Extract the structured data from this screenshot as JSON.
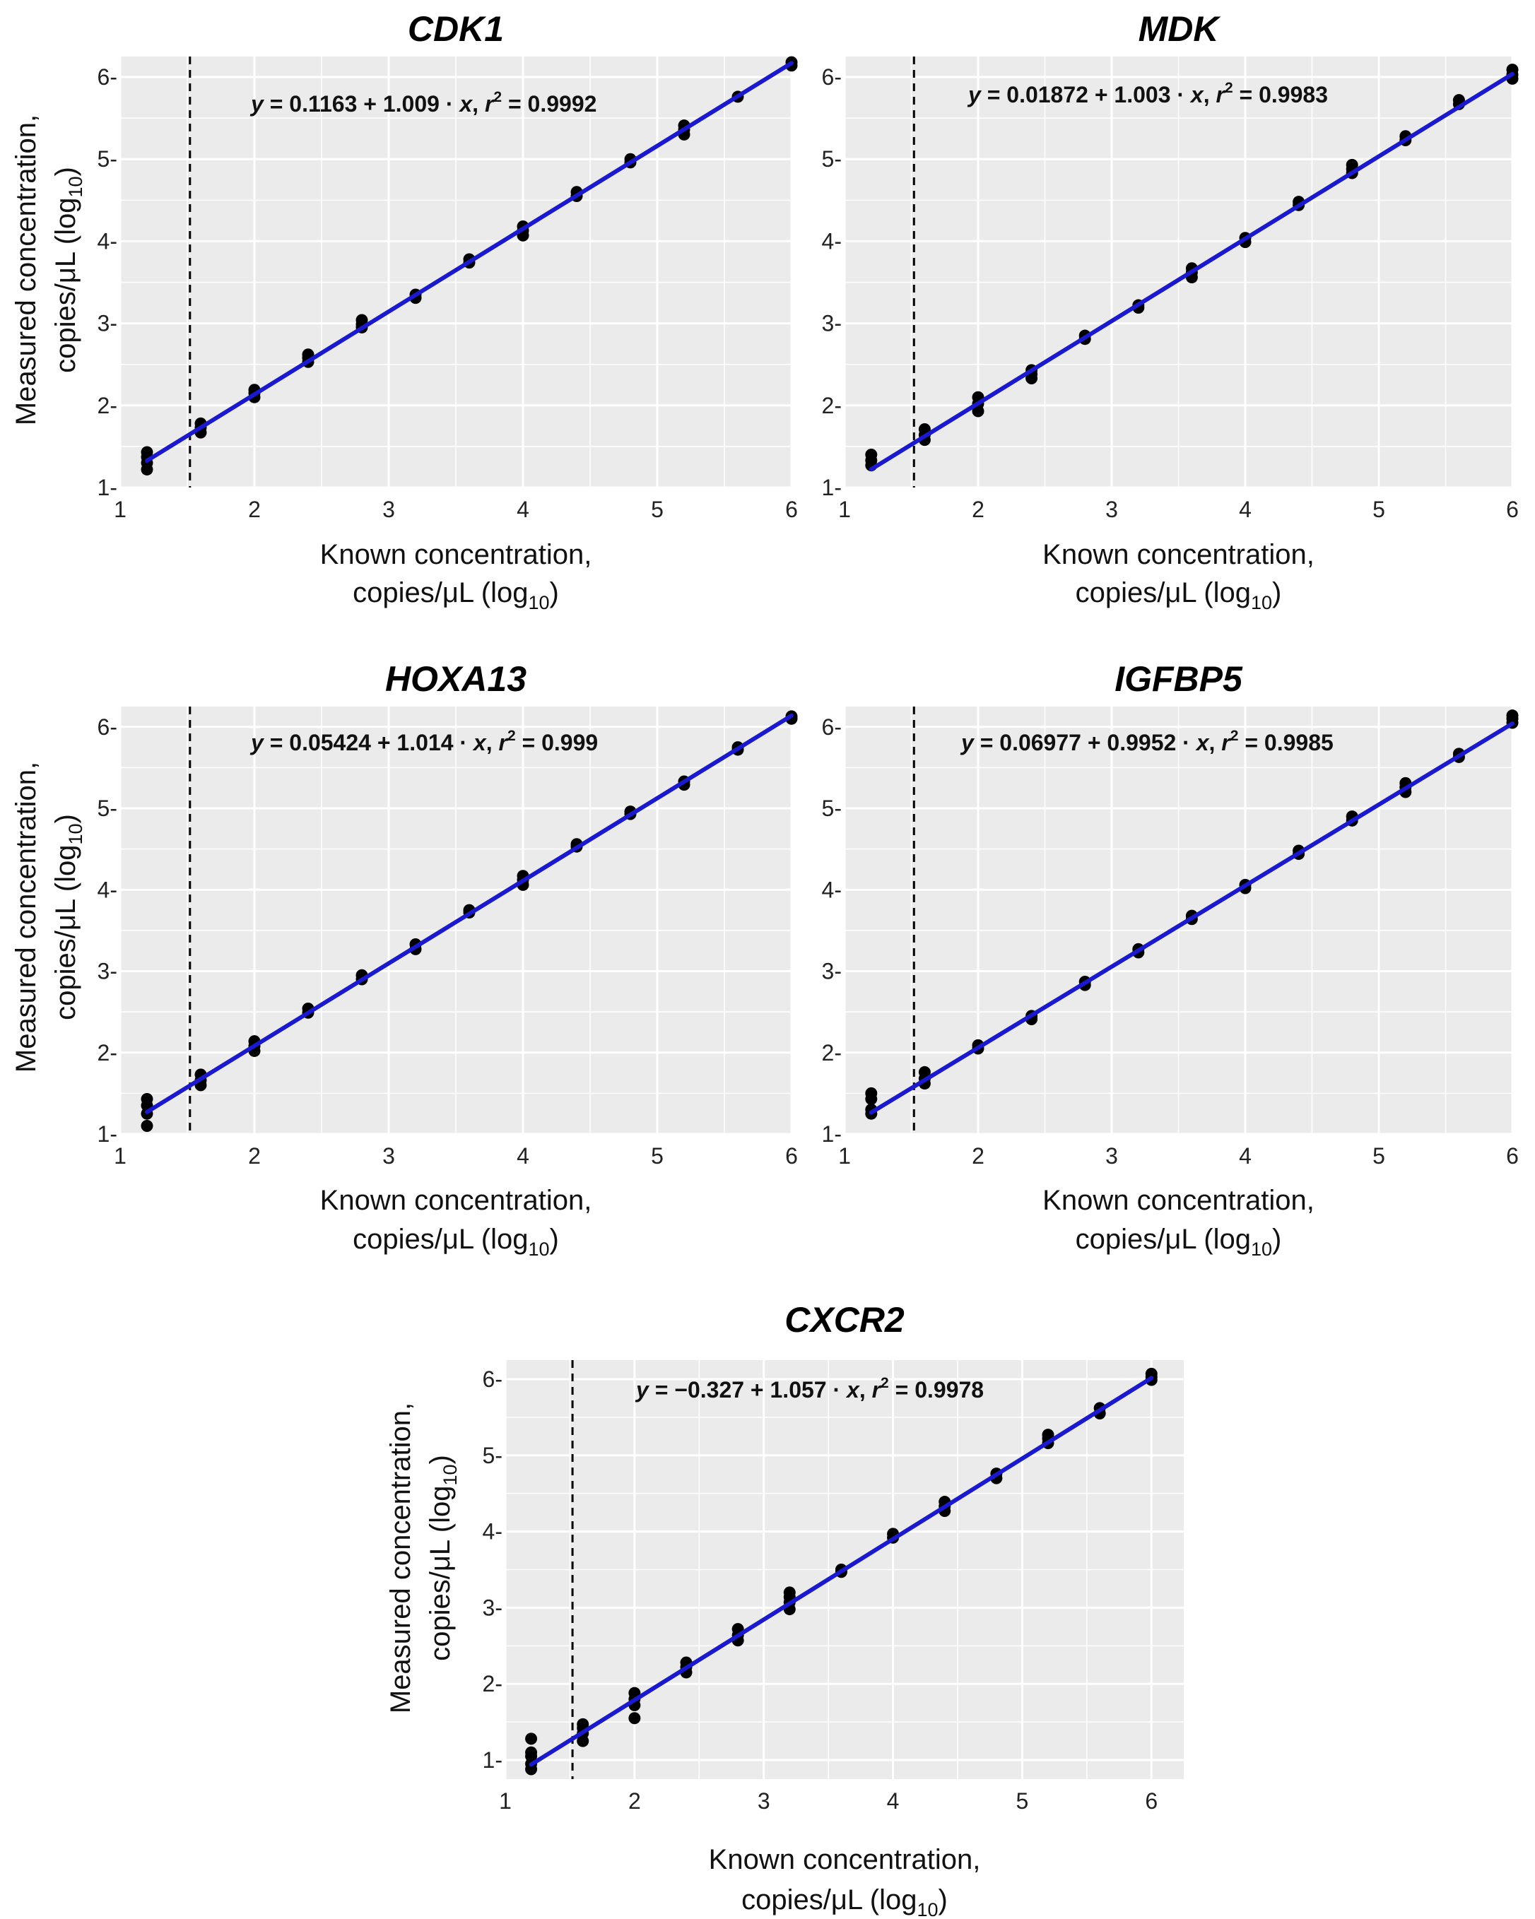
{
  "figure": {
    "shared": {
      "xlabel_line1": "Known concentration,",
      "xlabel_line2_prefix": "copies/μL (log",
      "xlabel_line2_sub": "10",
      "xlabel_line2_suffix": ")",
      "ylabel_line1": "Measured concentration,",
      "ylabel_line2_prefix": "copies/μL (log",
      "ylabel_line2_sub": "10",
      "ylabel_line2_suffix": ")",
      "x_ticks": [
        "1",
        "2",
        "3",
        "4",
        "5",
        "6"
      ],
      "y_ticks": [
        "1-",
        "2-",
        "3-",
        "4-",
        "5-",
        "6-"
      ],
      "equals": "=",
      "plus": "+",
      "times": "·",
      "comma": ",",
      "r_letter": "r",
      "r_exp": "2",
      "y_var": "y",
      "x_var": "x"
    },
    "colors": {
      "panel_background": "#ebebeb",
      "grid": "#ffffff",
      "fit_line": "#1a1acc",
      "points": "#000000",
      "lod_line": "#000000"
    }
  },
  "chart_data": [
    {
      "type": "scatter",
      "title": "CDK1",
      "xlabel": "Known concentration, copies/μL (log10)",
      "ylabel": "Measured concentration, copies/μL (log10)",
      "xlim": [
        1,
        6
      ],
      "ylim": [
        1,
        6.25
      ],
      "x_ticks": [
        1,
        2,
        3,
        4,
        5,
        6
      ],
      "y_ticks": [
        1,
        2,
        3,
        4,
        5,
        6
      ],
      "grid": true,
      "detection_limit_x": 1.52,
      "fit": {
        "intercept": 0.1163,
        "slope": 1.009,
        "intercept_label": "0.1163",
        "slope_label": "1.009",
        "r2": 0.9992,
        "r2_label": "0.9992"
      },
      "points": [
        [
          1.2,
          1.22
        ],
        [
          1.2,
          1.3
        ],
        [
          1.2,
          1.37
        ],
        [
          1.2,
          1.43
        ],
        [
          1.6,
          1.67
        ],
        [
          1.6,
          1.73
        ],
        [
          1.6,
          1.78
        ],
        [
          2.0,
          2.1
        ],
        [
          2.0,
          2.15
        ],
        [
          2.0,
          2.19
        ],
        [
          2.4,
          2.53
        ],
        [
          2.4,
          2.58
        ],
        [
          2.4,
          2.62
        ],
        [
          2.8,
          2.95
        ],
        [
          2.8,
          2.99
        ],
        [
          2.8,
          3.04
        ],
        [
          3.2,
          3.31
        ],
        [
          3.2,
          3.35
        ],
        [
          3.6,
          3.74
        ],
        [
          3.6,
          3.78
        ],
        [
          4.0,
          4.07
        ],
        [
          4.0,
          4.13
        ],
        [
          4.0,
          4.18
        ],
        [
          4.4,
          4.55
        ],
        [
          4.4,
          4.6
        ],
        [
          4.8,
          4.96
        ],
        [
          4.8,
          5.0
        ],
        [
          5.2,
          5.3
        ],
        [
          5.2,
          5.36
        ],
        [
          5.2,
          5.41
        ],
        [
          5.6,
          5.76
        ],
        [
          6.0,
          6.14
        ],
        [
          6.0,
          6.18
        ]
      ]
    },
    {
      "type": "scatter",
      "title": "MDK",
      "xlabel": "Known concentration, copies/μL (log10)",
      "ylabel": "",
      "xlim": [
        1,
        6
      ],
      "ylim": [
        1,
        6.25
      ],
      "x_ticks": [
        1,
        2,
        3,
        4,
        5,
        6
      ],
      "y_ticks": [
        1,
        2,
        3,
        4,
        5,
        6
      ],
      "grid": true,
      "detection_limit_x": 1.52,
      "fit": {
        "intercept": 0.01872,
        "slope": 1.003,
        "intercept_label": "0.01872",
        "slope_label": "1.003",
        "r2": 0.9983,
        "r2_label": "0.9983"
      },
      "points": [
        [
          1.2,
          1.27
        ],
        [
          1.2,
          1.33
        ],
        [
          1.2,
          1.4
        ],
        [
          1.6,
          1.58
        ],
        [
          1.6,
          1.64
        ],
        [
          1.6,
          1.71
        ],
        [
          2.0,
          1.93
        ],
        [
          2.0,
          2.02
        ],
        [
          2.0,
          2.1
        ],
        [
          2.4,
          2.33
        ],
        [
          2.4,
          2.38
        ],
        [
          2.4,
          2.43
        ],
        [
          2.8,
          2.81
        ],
        [
          2.8,
          2.85
        ],
        [
          3.2,
          3.19
        ],
        [
          3.2,
          3.22
        ],
        [
          3.6,
          3.56
        ],
        [
          3.6,
          3.62
        ],
        [
          3.6,
          3.67
        ],
        [
          4.0,
          3.99
        ],
        [
          4.0,
          4.04
        ],
        [
          4.4,
          4.44
        ],
        [
          4.4,
          4.48
        ],
        [
          4.8,
          4.83
        ],
        [
          4.8,
          4.88
        ],
        [
          4.8,
          4.93
        ],
        [
          5.2,
          5.23
        ],
        [
          5.2,
          5.28
        ],
        [
          5.6,
          5.67
        ],
        [
          5.6,
          5.72
        ],
        [
          6.0,
          5.98
        ],
        [
          6.0,
          6.03
        ],
        [
          6.0,
          6.09
        ]
      ]
    },
    {
      "type": "scatter",
      "title": "HOXA13",
      "xlabel": "Known concentration, copies/μL (log10)",
      "ylabel": "Measured concentration, copies/μL (log10)",
      "xlim": [
        1,
        6
      ],
      "ylim": [
        1,
        6.25
      ],
      "x_ticks": [
        1,
        2,
        3,
        4,
        5,
        6
      ],
      "y_ticks": [
        1,
        2,
        3,
        4,
        5,
        6
      ],
      "grid": true,
      "detection_limit_x": 1.52,
      "fit": {
        "intercept": 0.05424,
        "slope": 1.014,
        "intercept_label": "0.05424",
        "slope_label": "1.014",
        "r2": 0.999,
        "r2_label": "0.999"
      },
      "points": [
        [
          1.2,
          1.1
        ],
        [
          1.2,
          1.25
        ],
        [
          1.2,
          1.35
        ],
        [
          1.2,
          1.43
        ],
        [
          1.6,
          1.6
        ],
        [
          1.6,
          1.66
        ],
        [
          1.6,
          1.73
        ],
        [
          2.0,
          2.02
        ],
        [
          2.0,
          2.08
        ],
        [
          2.0,
          2.14
        ],
        [
          2.4,
          2.49
        ],
        [
          2.4,
          2.54
        ],
        [
          2.8,
          2.9
        ],
        [
          2.8,
          2.95
        ],
        [
          3.2,
          3.27
        ],
        [
          3.2,
          3.33
        ],
        [
          3.6,
          3.72
        ],
        [
          3.6,
          3.75
        ],
        [
          4.0,
          4.06
        ],
        [
          4.0,
          4.12
        ],
        [
          4.0,
          4.17
        ],
        [
          4.4,
          4.53
        ],
        [
          4.4,
          4.56
        ],
        [
          4.8,
          4.93
        ],
        [
          4.8,
          4.96
        ],
        [
          5.2,
          5.29
        ],
        [
          5.2,
          5.33
        ],
        [
          5.6,
          5.72
        ],
        [
          5.6,
          5.75
        ],
        [
          6.0,
          6.1
        ],
        [
          6.0,
          6.13
        ]
      ]
    },
    {
      "type": "scatter",
      "title": "IGFBP5",
      "xlabel": "Known concentration, copies/μL (log10)",
      "ylabel": "",
      "xlim": [
        1,
        6
      ],
      "ylim": [
        1,
        6.25
      ],
      "x_ticks": [
        1,
        2,
        3,
        4,
        5,
        6
      ],
      "y_ticks": [
        1,
        2,
        3,
        4,
        5,
        6
      ],
      "grid": true,
      "detection_limit_x": 1.52,
      "fit": {
        "intercept": 0.06977,
        "slope": 0.9952,
        "intercept_label": "0.06977",
        "slope_label": "0.9952",
        "r2": 0.9985,
        "r2_label": "0.9985"
      },
      "points": [
        [
          1.2,
          1.25
        ],
        [
          1.2,
          1.3
        ],
        [
          1.2,
          1.43
        ],
        [
          1.2,
          1.5
        ],
        [
          1.6,
          1.62
        ],
        [
          1.6,
          1.68
        ],
        [
          1.6,
          1.76
        ],
        [
          2.0,
          2.05
        ],
        [
          2.0,
          2.09
        ],
        [
          2.4,
          2.41
        ],
        [
          2.4,
          2.45
        ],
        [
          2.8,
          2.83
        ],
        [
          2.8,
          2.87
        ],
        [
          3.2,
          3.23
        ],
        [
          3.2,
          3.27
        ],
        [
          3.6,
          3.64
        ],
        [
          3.6,
          3.68
        ],
        [
          4.0,
          4.02
        ],
        [
          4.0,
          4.06
        ],
        [
          4.4,
          4.44
        ],
        [
          4.4,
          4.48
        ],
        [
          4.8,
          4.85
        ],
        [
          4.8,
          4.9
        ],
        [
          5.2,
          5.2
        ],
        [
          5.2,
          5.26
        ],
        [
          5.2,
          5.31
        ],
        [
          5.6,
          5.63
        ],
        [
          5.6,
          5.67
        ],
        [
          6.0,
          6.05
        ],
        [
          6.0,
          6.1
        ],
        [
          6.0,
          6.14
        ]
      ]
    },
    {
      "type": "scatter",
      "title": "CXCR2",
      "xlabel": "Known concentration, copies/μL (log10)",
      "ylabel": "Measured concentration, copies/μL (log10)",
      "xlim": [
        1,
        6.25
      ],
      "ylim": [
        0.75,
        6.25
      ],
      "x_ticks": [
        1,
        2,
        3,
        4,
        5,
        6
      ],
      "y_ticks": [
        1,
        2,
        3,
        4,
        5,
        6
      ],
      "grid": true,
      "detection_limit_x": 1.52,
      "fit": {
        "intercept": -0.327,
        "slope": 1.057,
        "intercept_label": "−0.327",
        "slope_label": "1.057",
        "r2": 0.9978,
        "r2_label": "0.9978"
      },
      "points": [
        [
          1.2,
          0.88
        ],
        [
          1.2,
          0.95
        ],
        [
          1.2,
          1.05
        ],
        [
          1.2,
          1.1
        ],
        [
          1.2,
          1.28
        ],
        [
          1.6,
          1.25
        ],
        [
          1.6,
          1.35
        ],
        [
          1.6,
          1.42
        ],
        [
          1.6,
          1.47
        ],
        [
          2.0,
          1.55
        ],
        [
          2.0,
          1.72
        ],
        [
          2.0,
          1.8
        ],
        [
          2.0,
          1.88
        ],
        [
          2.4,
          2.15
        ],
        [
          2.4,
          2.22
        ],
        [
          2.4,
          2.28
        ],
        [
          2.8,
          2.57
        ],
        [
          2.8,
          2.64
        ],
        [
          2.8,
          2.72
        ],
        [
          3.2,
          2.98
        ],
        [
          3.2,
          3.07
        ],
        [
          3.2,
          3.14
        ],
        [
          3.2,
          3.2
        ],
        [
          3.6,
          3.47
        ],
        [
          3.6,
          3.5
        ],
        [
          4.0,
          3.92
        ],
        [
          4.0,
          3.97
        ],
        [
          4.4,
          4.27
        ],
        [
          4.4,
          4.33
        ],
        [
          4.4,
          4.39
        ],
        [
          4.8,
          4.7
        ],
        [
          4.8,
          4.76
        ],
        [
          5.2,
          5.16
        ],
        [
          5.2,
          5.22
        ],
        [
          5.2,
          5.27
        ],
        [
          5.6,
          5.55
        ],
        [
          5.6,
          5.62
        ],
        [
          6.0,
          5.99
        ],
        [
          6.0,
          6.03
        ],
        [
          6.0,
          6.07
        ]
      ]
    }
  ]
}
